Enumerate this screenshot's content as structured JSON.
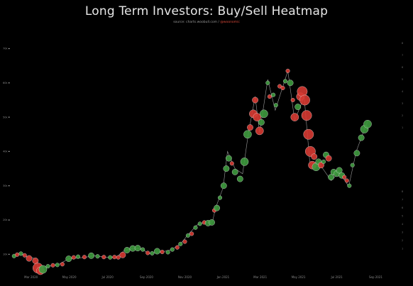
{
  "chart_data": {
    "type": "scatter",
    "title": "Long Term Investors: Buy/Sell Heatmap",
    "source": {
      "label": "source: charts.woobull.com /",
      "handle": "@woonomic"
    },
    "y_ticks": [
      {
        "label": "10k",
        "value": 10000
      },
      {
        "label": "20k",
        "value": 20000
      },
      {
        "label": "30k",
        "value": 30000
      },
      {
        "label": "40k",
        "value": 40000
      },
      {
        "label": "50k",
        "value": 50000
      },
      {
        "label": "60k",
        "value": 60000
      },
      {
        "label": "70k",
        "value": 70000
      }
    ],
    "x_ticks": [
      {
        "label": "Mar 2020",
        "value": "2020-03-01"
      },
      {
        "label": "May 2020",
        "value": "2020-05-01"
      },
      {
        "label": "Jul 2020",
        "value": "2020-07-01"
      },
      {
        "label": "Sep 2020",
        "value": "2020-09-01"
      },
      {
        "label": "Nov 2020",
        "value": "2020-11-01"
      },
      {
        "label": "Jan 2021",
        "value": "2021-01-01"
      },
      {
        "label": "Mar 2021",
        "value": "2021-03-01"
      },
      {
        "label": "May 2021",
        "value": "2021-05-01"
      },
      {
        "label": "Jul 2021",
        "value": "2021-07-01"
      },
      {
        "label": "Sep 2021",
        "value": "2021-09-01"
      }
    ],
    "right_ticks_upper": [
      "8",
      "7",
      "6",
      "5",
      "4",
      "3",
      "2",
      "1"
    ],
    "right_ticks_lower": [
      "8",
      "7",
      "6",
      "5",
      "4",
      "3",
      "2",
      "1"
    ],
    "xlim": [
      "2020-02-01",
      "2021-10-01"
    ],
    "ylim": [
      8000,
      73000
    ],
    "grid": false,
    "legend": "none",
    "colors": {
      "buy": "#3e9a3e",
      "sell": "#d63a32",
      "price": "#cfcfcf"
    },
    "series": [
      {
        "kind": "price",
        "points": [
          [
            "2020-02-01",
            9400
          ],
          [
            "2020-02-10",
            10100
          ],
          [
            "2020-02-15",
            10100
          ],
          [
            "2020-02-25",
            9100
          ],
          [
            "2020-03-05",
            8900
          ],
          [
            "2020-03-10",
            7900
          ],
          [
            "2020-03-13",
            5000
          ],
          [
            "2020-03-20",
            6200
          ],
          [
            "2020-04-01",
            6600
          ],
          [
            "2020-04-15",
            7100
          ],
          [
            "2020-04-30",
            8700
          ],
          [
            "2020-05-10",
            8800
          ],
          [
            "2020-05-25",
            9100
          ],
          [
            "2020-06-10",
            9600
          ],
          [
            "2020-06-30",
            9100
          ],
          [
            "2020-07-15",
            9200
          ],
          [
            "2020-07-27",
            11000
          ],
          [
            "2020-08-10",
            11700
          ],
          [
            "2020-08-25",
            11500
          ],
          [
            "2020-09-05",
            10200
          ],
          [
            "2020-09-25",
            10700
          ],
          [
            "2020-10-10",
            11300
          ],
          [
            "2020-10-25",
            13000
          ],
          [
            "2020-11-05",
            15500
          ],
          [
            "2020-11-20",
            18500
          ],
          [
            "2020-12-01",
            19300
          ],
          [
            "2020-12-15",
            19500
          ],
          [
            "2020-12-20",
            23500
          ],
          [
            "2021-01-01",
            29400
          ],
          [
            "2021-01-08",
            40000
          ],
          [
            "2021-01-20",
            35000
          ],
          [
            "2021-02-01",
            33500
          ],
          [
            "2021-02-10",
            45000
          ],
          [
            "2021-02-21",
            56000
          ],
          [
            "2021-02-28",
            45500
          ],
          [
            "2021-03-13",
            61000
          ],
          [
            "2021-03-25",
            52000
          ],
          [
            "2021-04-14",
            63500
          ],
          [
            "2021-04-25",
            49000
          ],
          [
            "2021-05-10",
            56000
          ],
          [
            "2021-05-19",
            37000
          ],
          [
            "2021-06-05",
            36000
          ],
          [
            "2021-06-22",
            31500
          ],
          [
            "2021-07-05",
            34000
          ],
          [
            "2021-07-20",
            29800
          ],
          [
            "2021-08-01",
            40000
          ],
          [
            "2021-08-15",
            47000
          ],
          [
            "2021-08-20",
            49000
          ]
        ]
      },
      {
        "kind": "bubbles",
        "description_note": "",
        "points": [
          {
            "x": "2020-02-03",
            "y": 9500,
            "side": "buy",
            "size": 1
          },
          {
            "x": "2020-02-08",
            "y": 9900,
            "side": "sell",
            "size": 1
          },
          {
            "x": "2020-02-14",
            "y": 10200,
            "side": "buy",
            "size": 1
          },
          {
            "x": "2020-02-20",
            "y": 9700,
            "side": "sell",
            "size": 1
          },
          {
            "x": "2020-02-27",
            "y": 8800,
            "side": "sell",
            "size": 2
          },
          {
            "x": "2020-03-08",
            "y": 8100,
            "side": "sell",
            "size": 2
          },
          {
            "x": "2020-03-12",
            "y": 6000,
            "side": "sell",
            "size": 4
          },
          {
            "x": "2020-03-16",
            "y": 5200,
            "side": "sell",
            "size": 3
          },
          {
            "x": "2020-03-20",
            "y": 5600,
            "side": "buy",
            "size": 3
          },
          {
            "x": "2020-03-28",
            "y": 6500,
            "side": "buy",
            "size": 1
          },
          {
            "x": "2020-04-05",
            "y": 6800,
            "side": "sell",
            "size": 1
          },
          {
            "x": "2020-04-12",
            "y": 6900,
            "side": "buy",
            "size": 1
          },
          {
            "x": "2020-04-20",
            "y": 7100,
            "side": "sell",
            "size": 1
          },
          {
            "x": "2020-04-30",
            "y": 8700,
            "side": "buy",
            "size": 2
          },
          {
            "x": "2020-05-08",
            "y": 9100,
            "side": "sell",
            "size": 1
          },
          {
            "x": "2020-05-15",
            "y": 9300,
            "side": "buy",
            "size": 1
          },
          {
            "x": "2020-05-25",
            "y": 9200,
            "side": "sell",
            "size": 1
          },
          {
            "x": "2020-06-05",
            "y": 9600,
            "side": "buy",
            "size": 2
          },
          {
            "x": "2020-06-15",
            "y": 9400,
            "side": "buy",
            "size": 1
          },
          {
            "x": "2020-06-25",
            "y": 9200,
            "side": "sell",
            "size": 1
          },
          {
            "x": "2020-07-05",
            "y": 9100,
            "side": "buy",
            "size": 1
          },
          {
            "x": "2020-07-12",
            "y": 9200,
            "side": "sell",
            "size": 1
          },
          {
            "x": "2020-07-18",
            "y": 9100,
            "side": "sell",
            "size": 1
          },
          {
            "x": "2020-07-25",
            "y": 9800,
            "side": "sell",
            "size": 2
          },
          {
            "x": "2020-08-01",
            "y": 11200,
            "side": "buy",
            "size": 2
          },
          {
            "x": "2020-08-10",
            "y": 11700,
            "side": "buy",
            "size": 2
          },
          {
            "x": "2020-08-18",
            "y": 11800,
            "side": "buy",
            "size": 2
          },
          {
            "x": "2020-08-26",
            "y": 11400,
            "side": "buy",
            "size": 1
          },
          {
            "x": "2020-09-03",
            "y": 10400,
            "side": "sell",
            "size": 1
          },
          {
            "x": "2020-09-10",
            "y": 10300,
            "side": "buy",
            "size": 1
          },
          {
            "x": "2020-09-18",
            "y": 10900,
            "side": "buy",
            "size": 2
          },
          {
            "x": "2020-09-26",
            "y": 10700,
            "side": "sell",
            "size": 1
          },
          {
            "x": "2020-10-05",
            "y": 10600,
            "side": "buy",
            "size": 1
          },
          {
            "x": "2020-10-12",
            "y": 11400,
            "side": "buy",
            "size": 1
          },
          {
            "x": "2020-10-20",
            "y": 12000,
            "side": "sell",
            "size": 1
          },
          {
            "x": "2020-10-25",
            "y": 13000,
            "side": "buy",
            "size": 1
          },
          {
            "x": "2020-11-01",
            "y": 13700,
            "side": "sell",
            "size": 1
          },
          {
            "x": "2020-11-06",
            "y": 15500,
            "side": "buy",
            "size": 1
          },
          {
            "x": "2020-11-12",
            "y": 16000,
            "side": "sell",
            "size": 1
          },
          {
            "x": "2020-11-18",
            "y": 17800,
            "side": "buy",
            "size": 1
          },
          {
            "x": "2020-11-25",
            "y": 18900,
            "side": "buy",
            "size": 1
          },
          {
            "x": "2020-12-02",
            "y": 19300,
            "side": "sell",
            "size": 1
          },
          {
            "x": "2020-12-08",
            "y": 19100,
            "side": "buy",
            "size": 2
          },
          {
            "x": "2020-12-14",
            "y": 19300,
            "side": "buy",
            "size": 2
          },
          {
            "x": "2020-12-18",
            "y": 22800,
            "side": "sell",
            "size": 1
          },
          {
            "x": "2020-12-22",
            "y": 23500,
            "side": "buy",
            "size": 2
          },
          {
            "x": "2020-12-27",
            "y": 26500,
            "side": "buy",
            "size": 1
          },
          {
            "x": "2021-01-02",
            "y": 30000,
            "side": "buy",
            "size": 2
          },
          {
            "x": "2021-01-06",
            "y": 35000,
            "side": "buy",
            "size": 2
          },
          {
            "x": "2021-01-10",
            "y": 38000,
            "side": "buy",
            "size": 2
          },
          {
            "x": "2021-01-15",
            "y": 36500,
            "side": "sell",
            "size": 1
          },
          {
            "x": "2021-01-20",
            "y": 34000,
            "side": "buy",
            "size": 2
          },
          {
            "x": "2021-01-28",
            "y": 32000,
            "side": "buy",
            "size": 2
          },
          {
            "x": "2021-02-04",
            "y": 37000,
            "side": "buy",
            "size": 3
          },
          {
            "x": "2021-02-09",
            "y": 45000,
            "side": "buy",
            "size": 3
          },
          {
            "x": "2021-02-13",
            "y": 47000,
            "side": "sell",
            "size": 2
          },
          {
            "x": "2021-02-18",
            "y": 51000,
            "side": "sell",
            "size": 3
          },
          {
            "x": "2021-02-21",
            "y": 55000,
            "side": "sell",
            "size": 2
          },
          {
            "x": "2021-02-24",
            "y": 50000,
            "side": "sell",
            "size": 3
          },
          {
            "x": "2021-02-28",
            "y": 46000,
            "side": "sell",
            "size": 3
          },
          {
            "x": "2021-03-03",
            "y": 48500,
            "side": "buy",
            "size": 2
          },
          {
            "x": "2021-03-07",
            "y": 51000,
            "side": "buy",
            "size": 3
          },
          {
            "x": "2021-03-13",
            "y": 60000,
            "side": "buy",
            "size": 1
          },
          {
            "x": "2021-03-16",
            "y": 56000,
            "side": "sell",
            "size": 1
          },
          {
            "x": "2021-03-22",
            "y": 56500,
            "side": "buy",
            "size": 1
          },
          {
            "x": "2021-03-26",
            "y": 53500,
            "side": "buy",
            "size": 1
          },
          {
            "x": "2021-04-01",
            "y": 59000,
            "side": "sell",
            "size": 1
          },
          {
            "x": "2021-04-06",
            "y": 58500,
            "side": "sell",
            "size": 1
          },
          {
            "x": "2021-04-10",
            "y": 60500,
            "side": "buy",
            "size": 1
          },
          {
            "x": "2021-04-14",
            "y": 63500,
            "side": "sell",
            "size": 1
          },
          {
            "x": "2021-04-18",
            "y": 60000,
            "side": "buy",
            "size": 2
          },
          {
            "x": "2021-04-22",
            "y": 55000,
            "side": "sell",
            "size": 1
          },
          {
            "x": "2021-04-25",
            "y": 50000,
            "side": "sell",
            "size": 3
          },
          {
            "x": "2021-04-30",
            "y": 53000,
            "side": "buy",
            "size": 2
          },
          {
            "x": "2021-05-04",
            "y": 56000,
            "side": "sell",
            "size": 3
          },
          {
            "x": "2021-05-07",
            "y": 57500,
            "side": "sell",
            "size": 4
          },
          {
            "x": "2021-05-11",
            "y": 55000,
            "side": "sell",
            "size": 4
          },
          {
            "x": "2021-05-14",
            "y": 50500,
            "side": "sell",
            "size": 4
          },
          {
            "x": "2021-05-17",
            "y": 45000,
            "side": "sell",
            "size": 4
          },
          {
            "x": "2021-05-20",
            "y": 40000,
            "side": "sell",
            "size": 4
          },
          {
            "x": "2021-05-23",
            "y": 36000,
            "side": "sell",
            "size": 3
          },
          {
            "x": "2021-05-26",
            "y": 38500,
            "side": "sell",
            "size": 2
          },
          {
            "x": "2021-05-29",
            "y": 35500,
            "side": "buy",
            "size": 3
          },
          {
            "x": "2021-06-02",
            "y": 37000,
            "side": "buy",
            "size": 2
          },
          {
            "x": "2021-06-06",
            "y": 36000,
            "side": "sell",
            "size": 2
          },
          {
            "x": "2021-06-10",
            "y": 37000,
            "side": "buy",
            "size": 1
          },
          {
            "x": "2021-06-14",
            "y": 39000,
            "side": "buy",
            "size": 2
          },
          {
            "x": "2021-06-18",
            "y": 38000,
            "side": "sell",
            "size": 2
          },
          {
            "x": "2021-06-22",
            "y": 32500,
            "side": "buy",
            "size": 2
          },
          {
            "x": "2021-06-26",
            "y": 34000,
            "side": "buy",
            "size": 2
          },
          {
            "x": "2021-07-01",
            "y": 33500,
            "side": "buy",
            "size": 2
          },
          {
            "x": "2021-07-05",
            "y": 34500,
            "side": "buy",
            "size": 2
          },
          {
            "x": "2021-07-09",
            "y": 33000,
            "side": "buy",
            "size": 2
          },
          {
            "x": "2021-07-13",
            "y": 32500,
            "side": "sell",
            "size": 1
          },
          {
            "x": "2021-07-17",
            "y": 31500,
            "side": "sell",
            "size": 1
          },
          {
            "x": "2021-07-21",
            "y": 30000,
            "side": "buy",
            "size": 1
          },
          {
            "x": "2021-07-26",
            "y": 36000,
            "side": "buy",
            "size": 1
          },
          {
            "x": "2021-08-02",
            "y": 39500,
            "side": "buy",
            "size": 2
          },
          {
            "x": "2021-08-09",
            "y": 44000,
            "side": "buy",
            "size": 2
          },
          {
            "x": "2021-08-14",
            "y": 46500,
            "side": "buy",
            "size": 3
          },
          {
            "x": "2021-08-19",
            "y": 48000,
            "side": "buy",
            "size": 3
          }
        ]
      }
    ]
  }
}
